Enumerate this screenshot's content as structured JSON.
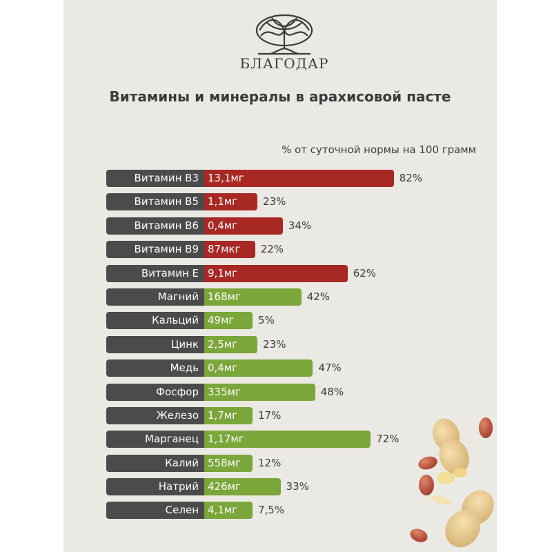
{
  "brand": {
    "name": "БЛАГОДАР"
  },
  "title": "Витамины и минералы в арахисовой пасте",
  "subtitle": "% от суточной нормы на 100 грамм",
  "colors": {
    "vitamin": "#a82823",
    "mineral": "#7aa63a",
    "label": "#4b4b4b",
    "background": "#ebe9e4"
  },
  "chart_data": {
    "type": "bar",
    "orientation": "horizontal",
    "title": "Витамины и минералы в арахисовой пасте",
    "subtitle": "% от суточной нормы на 100 грамм",
    "categories": [
      "Витамин B3",
      "Витамин B5",
      "Витамин B6",
      "Витамин B9",
      "Витамин E",
      "Магний",
      "Кальций",
      "Цинк",
      "Медь",
      "Фосфор",
      "Железо",
      "Марганец",
      "Калий",
      "Натрий",
      "Селен"
    ],
    "amounts": [
      "13,1мг",
      "1,1мг",
      "0,4мг",
      "87мкг",
      "9,1мг",
      "168мг",
      "49мг",
      "2,5мг",
      "0,4мг",
      "335мг",
      "1,7мг",
      "1,17мг",
      "558мг",
      "426мг",
      "4,1мг"
    ],
    "percent_labels": [
      "82%",
      "23%",
      "34%",
      "22%",
      "62%",
      "42%",
      "5%",
      "23%",
      "47%",
      "48%",
      "17%",
      "72%",
      "12%",
      "33%",
      "7,5%"
    ],
    "values": [
      82,
      23,
      34,
      22,
      62,
      42,
      5,
      23,
      47,
      48,
      17,
      72,
      12,
      33,
      7.5
    ],
    "groups": [
      "vitamin",
      "vitamin",
      "vitamin",
      "vitamin",
      "vitamin",
      "mineral",
      "mineral",
      "mineral",
      "mineral",
      "mineral",
      "mineral",
      "mineral",
      "mineral",
      "mineral",
      "mineral"
    ],
    "xlim": [
      0,
      100
    ]
  }
}
